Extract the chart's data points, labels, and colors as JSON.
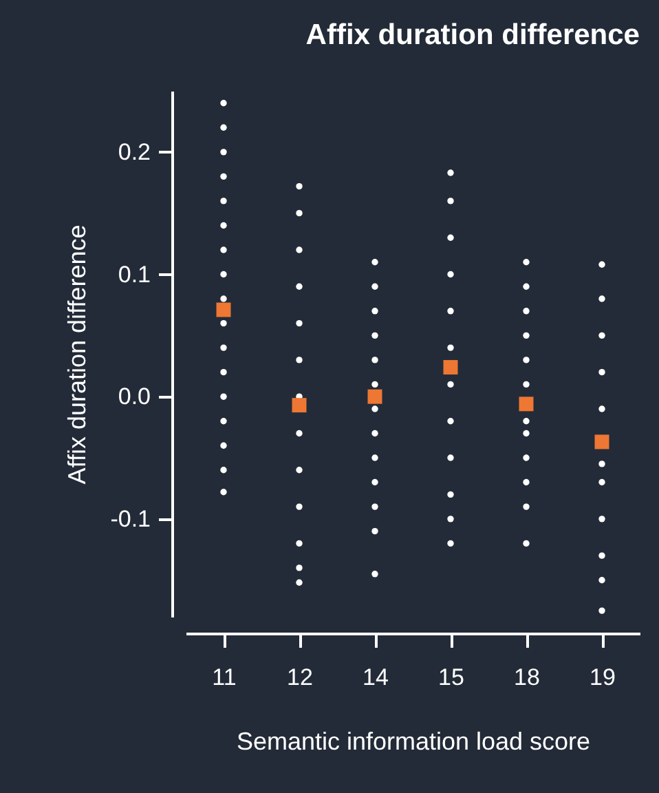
{
  "chart_data": {
    "type": "scatter",
    "title": "Affix duration difference",
    "xlabel": "Semantic information load score",
    "ylabel": "Affix duration difference",
    "categories": [
      "11",
      "12",
      "14",
      "15",
      "18",
      "19"
    ],
    "ylim": [
      -0.18,
      0.25
    ],
    "yticks": [
      {
        "value": -0.1,
        "label": "-0.1"
      },
      {
        "value": 0,
        "label": "0.0"
      },
      {
        "value": 0.1,
        "label": "0.1"
      },
      {
        "value": 0.2,
        "label": "0.2"
      }
    ],
    "grid": false,
    "series": [
      {
        "color": "#ffffff",
        "marker": "circle",
        "x": [
          "11",
          "11",
          "11",
          "11",
          "11",
          "11",
          "11",
          "11",
          "11",
          "11",
          "11",
          "11",
          "11",
          "11",
          "11",
          "11",
          "11",
          "12",
          "12",
          "12",
          "12",
          "12",
          "12",
          "12",
          "12",
          "12",
          "12",
          "12",
          "12",
          "12",
          "14",
          "14",
          "14",
          "14",
          "14",
          "14",
          "14",
          "14",
          "14",
          "14",
          "14",
          "14",
          "14",
          "15",
          "15",
          "15",
          "15",
          "15",
          "15",
          "15",
          "15",
          "15",
          "15",
          "15",
          "15",
          "18",
          "18",
          "18",
          "18",
          "18",
          "18",
          "18",
          "18",
          "18",
          "18",
          "18",
          "18",
          "19",
          "19",
          "19",
          "19",
          "19",
          "19",
          "19",
          "19",
          "19",
          "19",
          "19"
        ],
        "values": [
          0.24,
          0.22,
          0.2,
          0.18,
          0.16,
          0.14,
          0.12,
          0.1,
          0.08,
          0.06,
          0.04,
          0.02,
          0,
          -0.02,
          -0.04,
          -0.06,
          -0.078,
          0.172,
          0.15,
          0.12,
          0.09,
          0.06,
          0.03,
          0,
          -0.03,
          -0.06,
          -0.09,
          -0.12,
          -0.14,
          -0.152,
          0.11,
          0.09,
          0.07,
          0.05,
          0.03,
          0.01,
          -0.01,
          -0.03,
          -0.05,
          -0.07,
          -0.09,
          -0.11,
          -0.145,
          0.183,
          0.16,
          0.13,
          0.1,
          0.07,
          0.04,
          0.01,
          -0.02,
          -0.05,
          -0.08,
          -0.1,
          -0.12,
          0.11,
          0.09,
          0.07,
          0.05,
          0.03,
          0.01,
          -0.02,
          -0.03,
          -0.05,
          -0.07,
          -0.09,
          -0.12,
          0.108,
          0.08,
          0.05,
          0.02,
          -0.01,
          -0.055,
          -0.07,
          -0.1,
          -0.13,
          -0.15,
          -0.175
        ]
      },
      {
        "color": "#ee7733",
        "marker": "square",
        "x": [
          "11",
          "12",
          "14",
          "15",
          "18",
          "19"
        ],
        "values": [
          0.071,
          -0.007,
          0,
          0.024,
          -0.006,
          -0.037
        ]
      }
    ]
  }
}
